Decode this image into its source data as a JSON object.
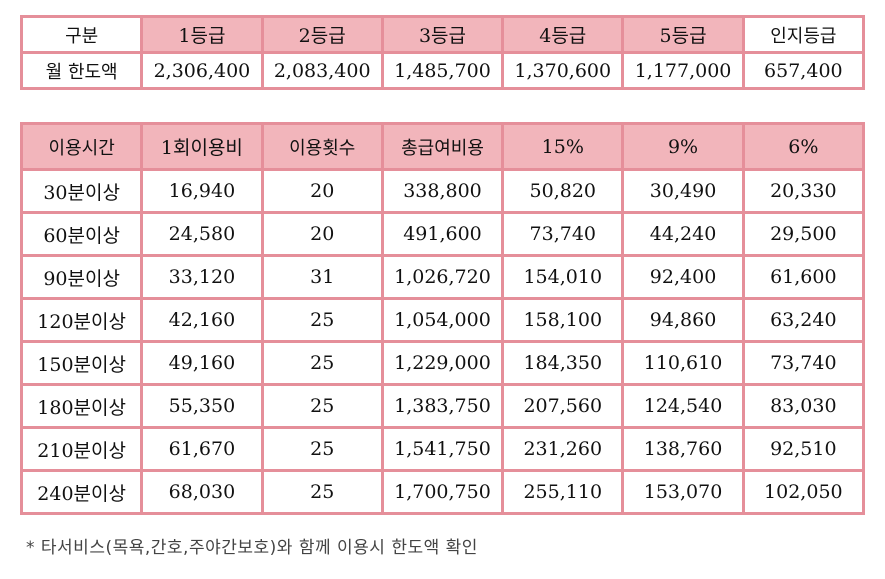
{
  "grade_table": {
    "headers": [
      "구분",
      "1등급",
      "2등급",
      "3등급",
      "4등급",
      "5등급",
      "인지등급"
    ],
    "row": [
      "월 한도액",
      "2,306,400",
      "2,083,400",
      "1,485,700",
      "1,370,600",
      "1,177,000",
      "657,400"
    ]
  },
  "usage_table": {
    "headers": [
      "이용시간",
      "1회이용비",
      "이용횟수",
      "총급여비용",
      "15%",
      "9%",
      "6%"
    ],
    "rows": [
      [
        "30분이상",
        "16,940",
        "20",
        "338,800",
        "50,820",
        "30,490",
        "20,330"
      ],
      [
        "60분이상",
        "24,580",
        "20",
        "491,600",
        "73,740",
        "44,240",
        "29,500"
      ],
      [
        "90분이상",
        "33,120",
        "31",
        "1,026,720",
        "154,010",
        "92,400",
        "61,600"
      ],
      [
        "120분이상",
        "42,160",
        "25",
        "1,054,000",
        "158,100",
        "94,860",
        "63,240"
      ],
      [
        "150분이상",
        "49,160",
        "25",
        "1,229,000",
        "184,350",
        "110,610",
        "73,740"
      ],
      [
        "180분이상",
        "55,350",
        "25",
        "1,383,750",
        "207,560",
        "124,540",
        "83,030"
      ],
      [
        "210분이상",
        "61,670",
        "25",
        "1,541,750",
        "231,260",
        "138,760",
        "92,510"
      ],
      [
        "240분이상",
        "68,030",
        "25",
        "1,700,750",
        "255,110",
        "153,070",
        "102,050"
      ]
    ]
  },
  "footnote": "* 타서비스(목욕,간호,주야간보호)와 함께 이용시 한도액 확인",
  "colors": {
    "border": "#e58f9a",
    "header_fill": "#f2b5bb",
    "cell_fill": "#ffffff"
  }
}
